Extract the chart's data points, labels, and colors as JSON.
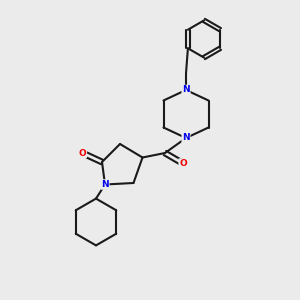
{
  "background_color": "#ebebeb",
  "bond_color": "#1a1a1a",
  "atom_colors": {
    "N": "#0000ee",
    "O": "#ee0000",
    "C": "#1a1a1a"
  },
  "line_width": 1.5,
  "figsize": [
    3.0,
    3.0
  ],
  "dpi": 100
}
